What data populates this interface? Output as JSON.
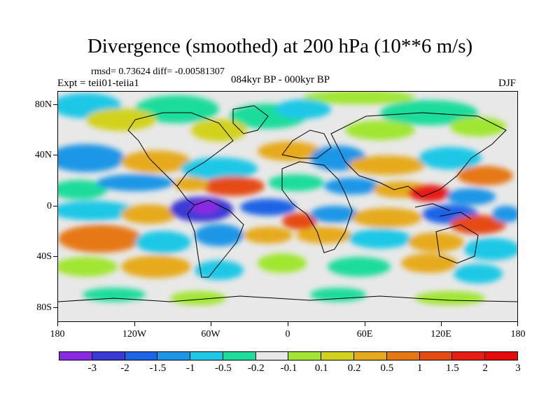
{
  "header": {
    "title": "Divergence (smoothed) at 200 hPa (10**6 m/s)",
    "stats": "rmsd= 0.73624 diff= -0.00581307",
    "experiment": "Expt = teii01-teiia1",
    "period": "084kyr BP - 000kyr BP",
    "season": "DJF"
  },
  "map": {
    "lat_labels": [
      "80N",
      "40N",
      "0",
      "40S",
      "80S"
    ],
    "lon_labels": [
      "180",
      "120W",
      "60W",
      "0",
      "60E",
      "120E",
      "180"
    ],
    "background_color": "#e8e8e8"
  },
  "colorbar": {
    "colors": [
      "#8a2be2",
      "#3a3ad6",
      "#1e64e6",
      "#1e96e6",
      "#1ec8e6",
      "#1edc9b",
      "#e8e8e8",
      "#a0e632",
      "#d2d21e",
      "#e6aa1e",
      "#e67814",
      "#e64b14",
      "#e61e14",
      "#e60a0a"
    ],
    "labels": [
      "-3",
      "-2",
      "-1.5",
      "-1",
      "-0.5",
      "-0.2",
      "-0.1",
      "0.1",
      "0.2",
      "0.5",
      "1",
      "1.5",
      "2",
      "3"
    ]
  }
}
